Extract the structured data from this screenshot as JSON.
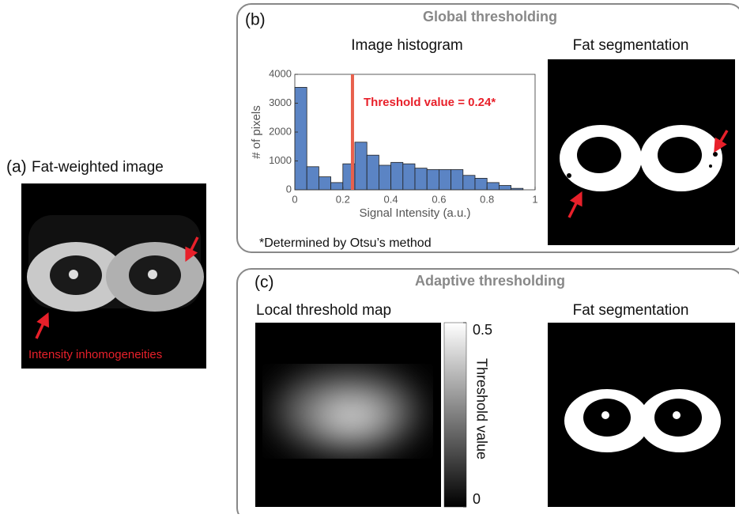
{
  "panel_a": {
    "label": "(a)",
    "title": "Fat-weighted image",
    "annotation": "Intensity inhomogeneities"
  },
  "panel_b": {
    "label": "(b)",
    "title": "Global thresholding",
    "segmentation_title": "Fat segmentation",
    "footnote": "*Determined by Otsu’s method"
  },
  "panel_c": {
    "label": "(c)",
    "title": "Adaptive thresholding",
    "map_title": "Local threshold map",
    "segmentation_title": "Fat segmentation",
    "colorbar": {
      "label": "Threshold value",
      "lim": [
        0,
        0.5
      ],
      "ticks": [
        0,
        0.5
      ]
    }
  },
  "chart_data": {
    "type": "histogram",
    "title": "Image histogram",
    "x_label": "Signal Intensity (a.u.)",
    "y_label": "# of pixels",
    "bins": [
      0,
      0.05,
      0.1,
      0.15,
      0.2,
      0.25,
      0.3,
      0.35,
      0.4,
      0.45,
      0.5,
      0.55,
      0.6,
      0.65,
      0.7,
      0.75,
      0.8,
      0.85,
      0.9,
      0.95
    ],
    "values": [
      3550,
      800,
      450,
      250,
      900,
      1650,
      1200,
      850,
      950,
      900,
      750,
      700,
      700,
      700,
      500,
      400,
      250,
      150,
      50
    ],
    "color": "#5b84c4",
    "xlim": [
      0,
      1
    ],
    "ylim": [
      0,
      4000
    ],
    "xticks": [
      0,
      0.2,
      0.4,
      0.6,
      0.8,
      1
    ],
    "yticks": [
      0,
      1000,
      2000,
      3000,
      4000
    ],
    "threshold": 0.24,
    "threshold_color": "#e8604c",
    "annotation": "Threshold value = 0.24*"
  }
}
